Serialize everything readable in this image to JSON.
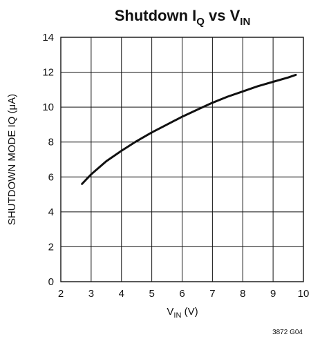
{
  "chart_data": {
    "type": "line",
    "title": {
      "main": "Shutdown I",
      "main_sub": "Q",
      "mid": " vs V",
      "mid_sub": "IN"
    },
    "xlabel": {
      "main": "V",
      "sub": "IN",
      "rest": " (V)"
    },
    "ylabel": "SHUTDOWN MODE IQ (μA)",
    "xlim": [
      2,
      10
    ],
    "ylim": [
      0,
      14
    ],
    "x_ticks": [
      "2",
      "3",
      "4",
      "5",
      "6",
      "7",
      "8",
      "9",
      "10"
    ],
    "y_ticks": [
      "0",
      "2",
      "4",
      "6",
      "8",
      "10",
      "12",
      "14"
    ],
    "grid": true,
    "series": [
      {
        "x": [
          2.7,
          3.0,
          3.5,
          4.0,
          4.5,
          5.0,
          5.5,
          6.0,
          6.5,
          7.0,
          7.5,
          8.0,
          8.5,
          9.0,
          9.5,
          9.75
        ],
        "y": [
          5.6,
          6.15,
          6.9,
          7.5,
          8.05,
          8.55,
          9.0,
          9.45,
          9.85,
          10.25,
          10.6,
          10.9,
          11.2,
          11.45,
          11.7,
          11.85
        ]
      }
    ],
    "footnote": "3872 G04"
  }
}
